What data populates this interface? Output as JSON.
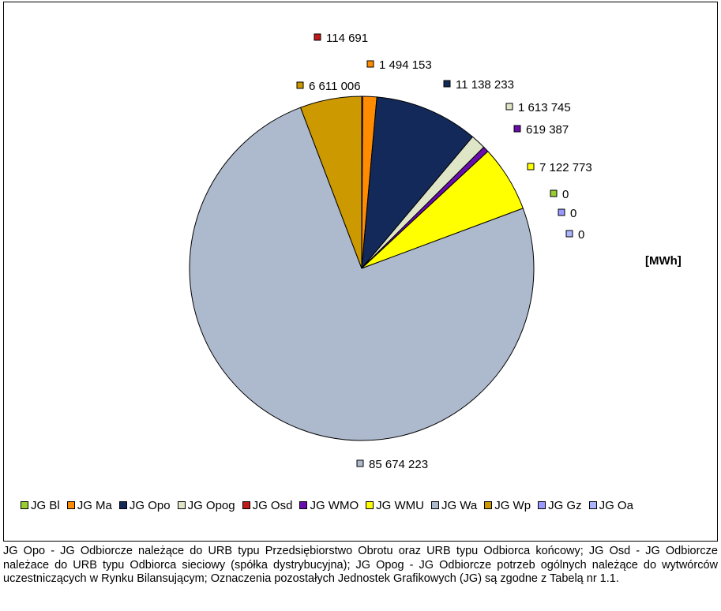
{
  "chart_data": {
    "type": "pie",
    "unit_label": "[MWh]",
    "slices": [
      {
        "name": "JG Osd",
        "value": 114691,
        "label": "114 691",
        "color": "#c0191a"
      },
      {
        "name": "JG Ma",
        "value": 1494153,
        "label": "1 494 153",
        "color": "#ff8c00"
      },
      {
        "name": "JG Opo",
        "value": 11138233,
        "label": "11 138 233",
        "color": "#13295a"
      },
      {
        "name": "JG Opog",
        "value": 1613745,
        "label": "1 613 745",
        "color": "#dfe6c8"
      },
      {
        "name": "JG WMO",
        "value": 619387,
        "label": "619 387",
        "color": "#6a0dad"
      },
      {
        "name": "JG WMU",
        "value": 7122773,
        "label": "7 122 773",
        "color": "#ffff00"
      },
      {
        "name": "JG Bl",
        "value": 0,
        "label": "0",
        "color": "#9acd32"
      },
      {
        "name": "JG Gz",
        "value": 0,
        "label": "0",
        "color": "#9999ff"
      },
      {
        "name": "JG Oa",
        "value": 0,
        "label": "0",
        "color": "#aab4ff"
      },
      {
        "name": "JG Wa",
        "value": 85674223,
        "label": "85 674 223",
        "color": "#adb9cc"
      },
      {
        "name": "JG Wp",
        "value": 6611006,
        "label": "6 611 006",
        "color": "#cc9900"
      }
    ],
    "legend": [
      {
        "name": "JG Bl",
        "color": "#9acd32"
      },
      {
        "name": "JG Ma",
        "color": "#ff8c00"
      },
      {
        "name": "JG Opo",
        "color": "#13295a"
      },
      {
        "name": "JG Opog",
        "color": "#dfe6c8"
      },
      {
        "name": "JG Osd",
        "color": "#c0191a"
      },
      {
        "name": "JG WMO",
        "color": "#6a0dad"
      },
      {
        "name": "JG WMU",
        "color": "#ffff00"
      },
      {
        "name": "JG Wa",
        "color": "#adb9cc"
      },
      {
        "name": "JG Wp",
        "color": "#cc9900"
      },
      {
        "name": "JG Gz",
        "color": "#9999ff"
      },
      {
        "name": "JG Oa",
        "color": "#aab4ff"
      }
    ],
    "legend_placement": "bottom"
  },
  "footnote": "JG Opo - JG Odbiorcze należące do URB typu Przedsiębiorstwo Obrotu oraz URB typu Odbiorca końcowy; JG Osd - JG Odbiorcze należace do URB typu Odbiorca sieciowy (spółka dystrybucyjna); JG Opog - JG Odbiorcze potrzeb ogólnych należące do wytwórców uczestniczących w Rynku Bilansującym; Oznaczenia pozostałych Jednostek Grafikowych (JG) są zgodne z Tabelą nr 1.1."
}
